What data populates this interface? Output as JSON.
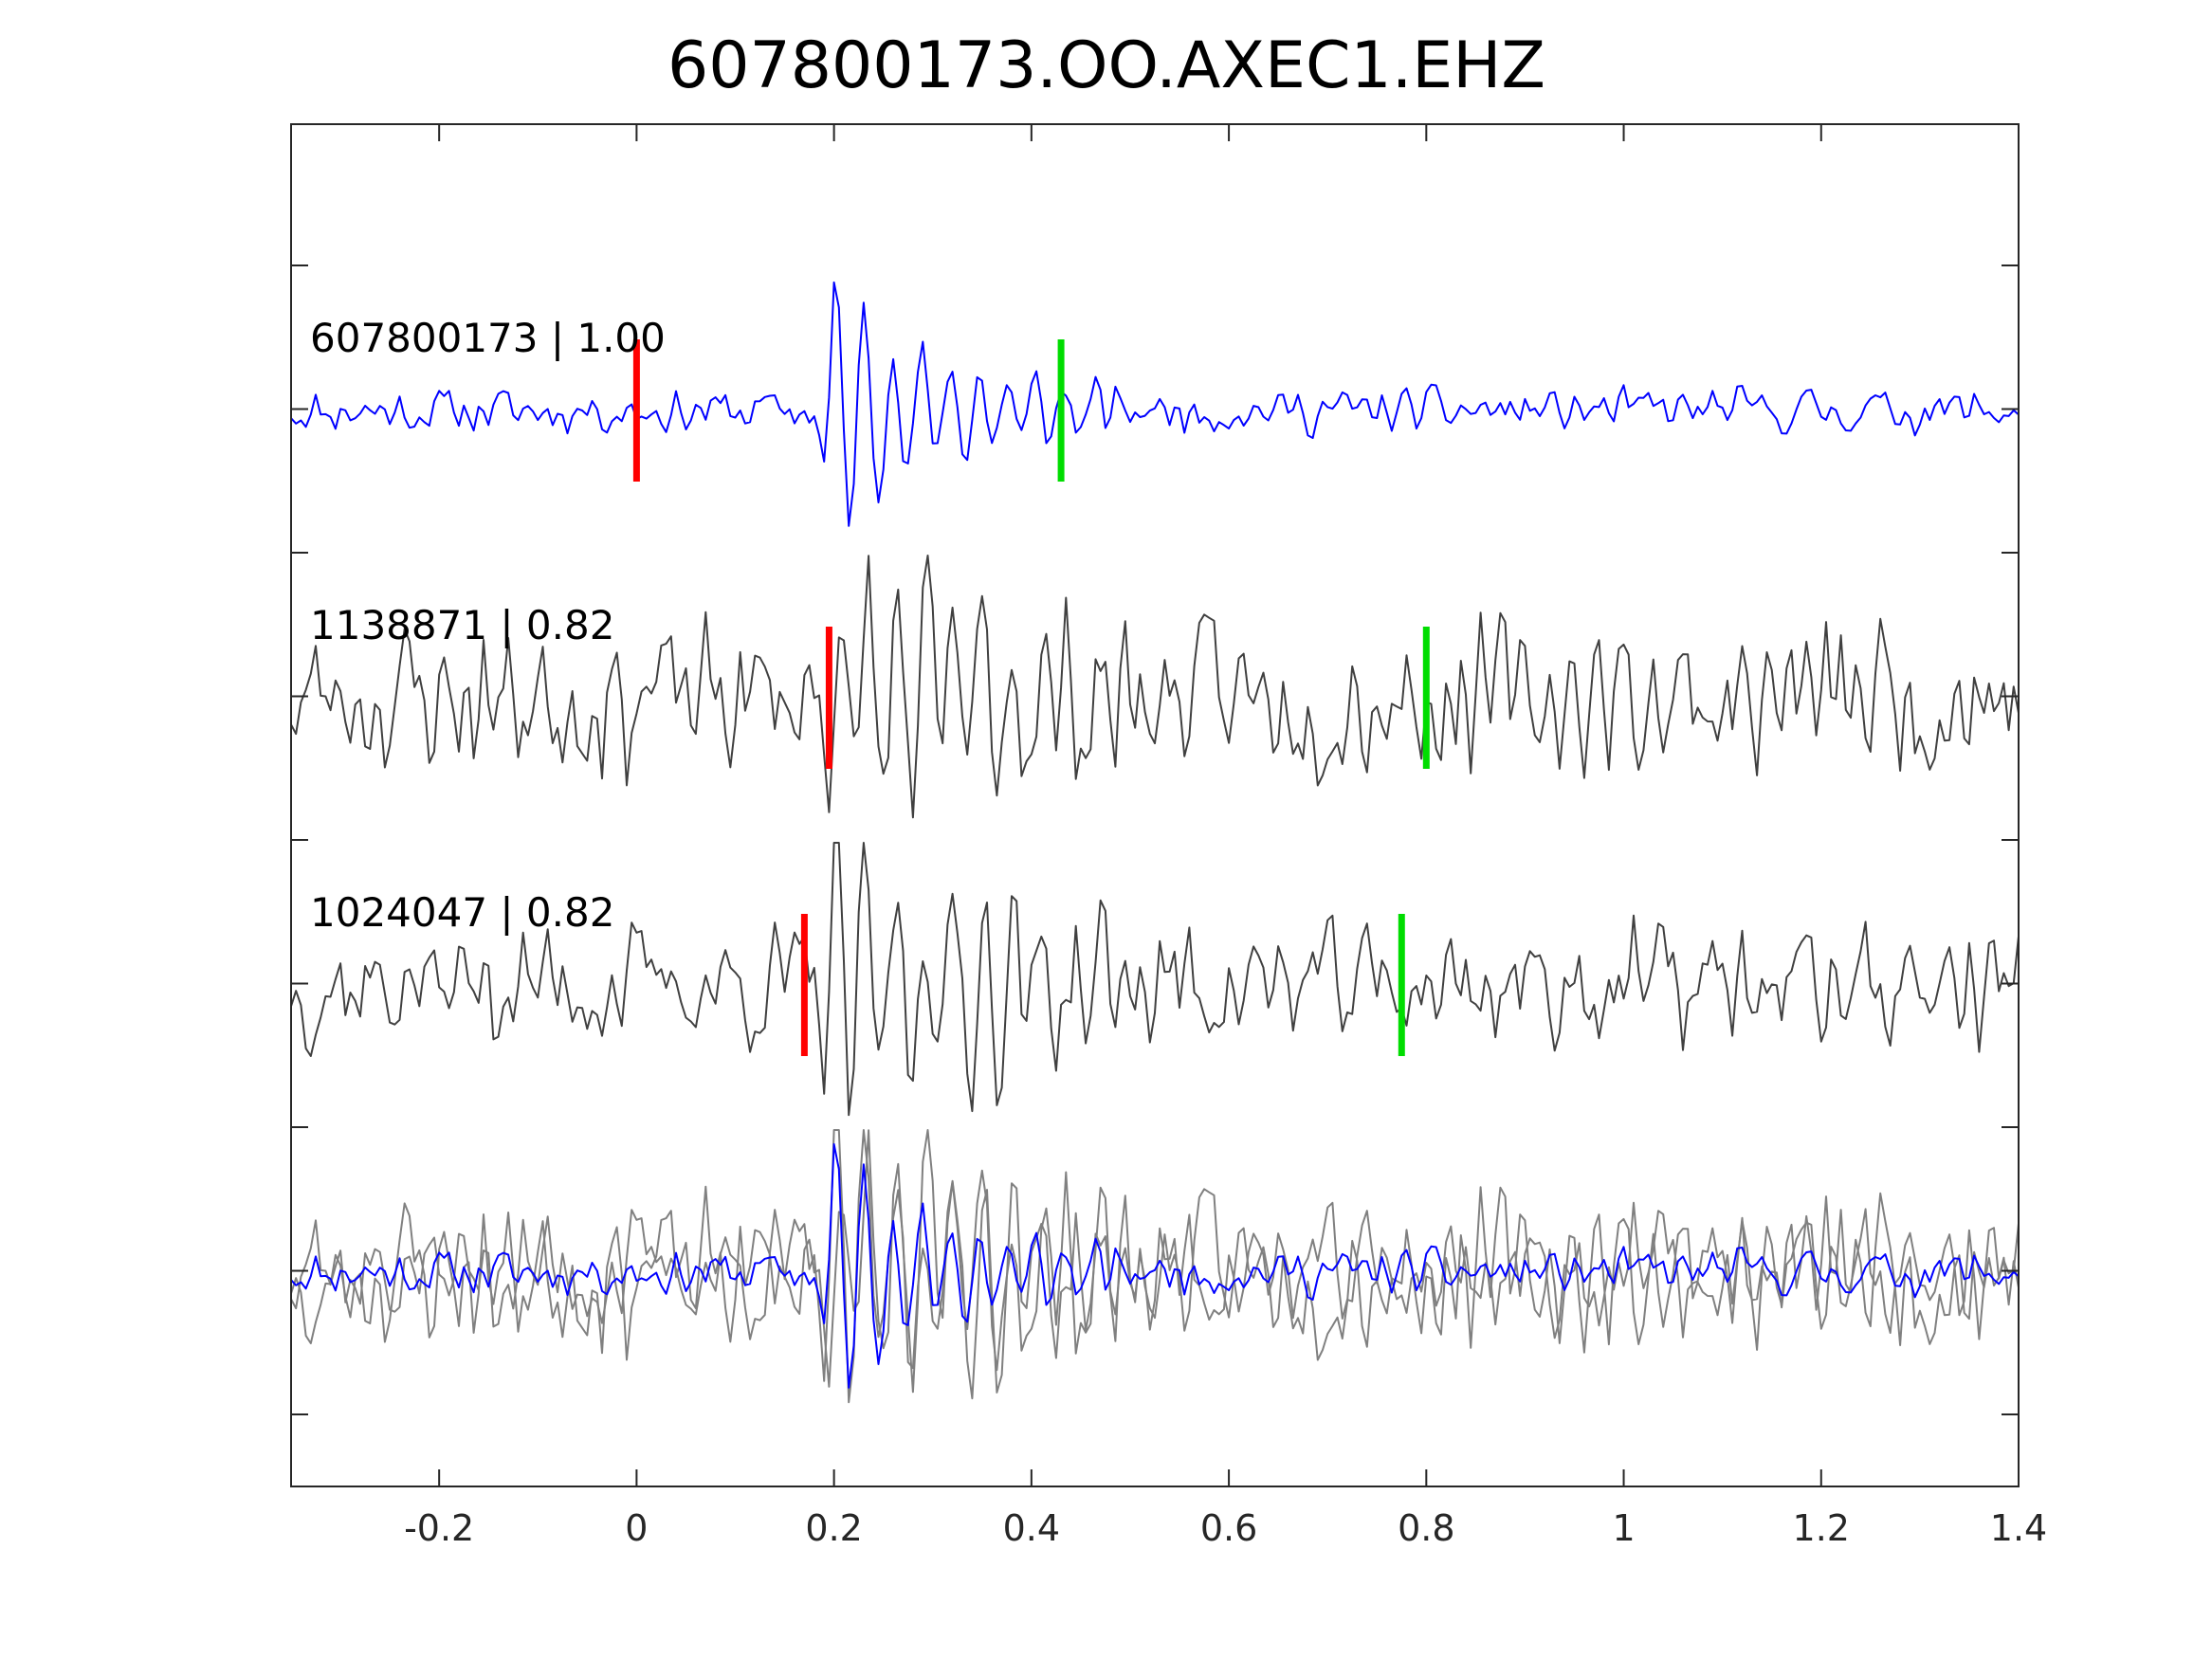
{
  "chart_data": {
    "type": "line",
    "title": "607800173.OO.AXEC1.EHZ",
    "xlabel": "",
    "ylabel": "",
    "xlim": [
      -0.35,
      1.4
    ],
    "x_ticks": [
      -0.2,
      0,
      0.2,
      0.4,
      0.6,
      0.8,
      1,
      1.2,
      1.4
    ],
    "x_tick_labels": [
      "-0.2",
      "0",
      "0.2",
      "0.4",
      "0.6",
      "0.8",
      "1",
      "1.2",
      "1.4"
    ],
    "y_ticks_count": 9,
    "grid": false,
    "sample_interval": 0.005,
    "colors": {
      "template": "#0000ff",
      "match": "#404040",
      "overlay_match": "#808080",
      "p_pick": "#ff0000",
      "s_pick": "#00dd00",
      "axes": "#262626"
    },
    "traces": [
      {
        "id": "607800173",
        "label": "607800173 | 1.00",
        "event_id": "607800173",
        "correlation": 1.0,
        "color": "template",
        "p_pick": 0.0,
        "s_pick": 0.43,
        "signal_onset": 0.18,
        "signal_amplitude": 1.0,
        "noise_amplitude": 0.12,
        "decay": 0.13,
        "signal_period": 0.029,
        "seed": 11
      },
      {
        "id": "1138871",
        "label": "1138871 | 0.82",
        "event_id": "1138871",
        "correlation": 0.82,
        "color": "match",
        "p_pick": 0.195,
        "s_pick": 0.8,
        "signal_onset": 0.185,
        "signal_amplitude": 1.0,
        "noise_amplitude": 0.42,
        "decay": 0.18,
        "signal_period": 0.029,
        "seed": 23
      },
      {
        "id": "1024047",
        "label": "1024047 | 0.82",
        "event_id": "1024047",
        "correlation": 0.82,
        "color": "match",
        "p_pick": 0.17,
        "s_pick": 0.775,
        "signal_onset": 0.18,
        "signal_amplitude": 1.0,
        "noise_amplitude": 0.34,
        "decay": 0.2,
        "signal_period": 0.03,
        "seed": 37
      }
    ],
    "overlay": {
      "description_visible": false,
      "series": [
        "607800173",
        "1138871",
        "1024047"
      ]
    }
  }
}
